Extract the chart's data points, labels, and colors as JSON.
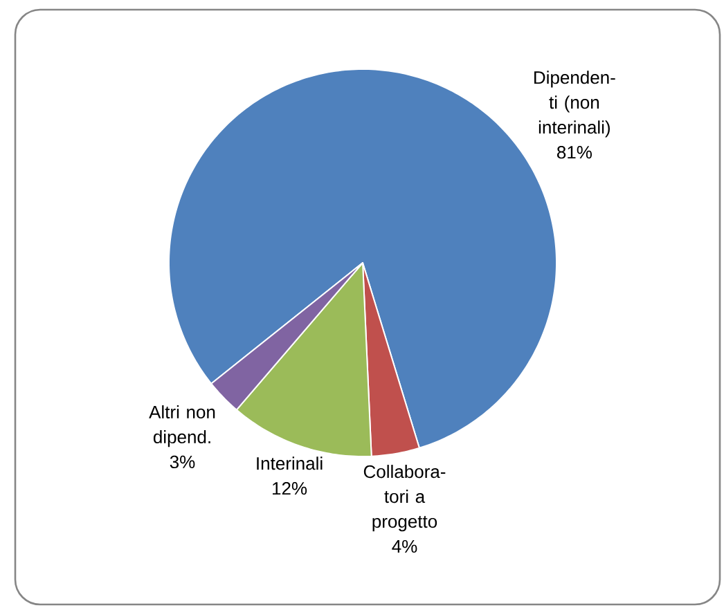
{
  "chart_data": {
    "type": "pie",
    "categories": [
      "Dipenden-ti (non interinali)",
      "Collabora-tori a progetto",
      "Interinali",
      "Altri non dipend."
    ],
    "values": [
      81,
      4,
      12,
      3
    ],
    "colors": [
      "#4f81bd",
      "#c0504d",
      "#9bbb59",
      "#8064a2"
    ],
    "value_labels": [
      "81%",
      "4%",
      "12%",
      "3%"
    ]
  }
}
